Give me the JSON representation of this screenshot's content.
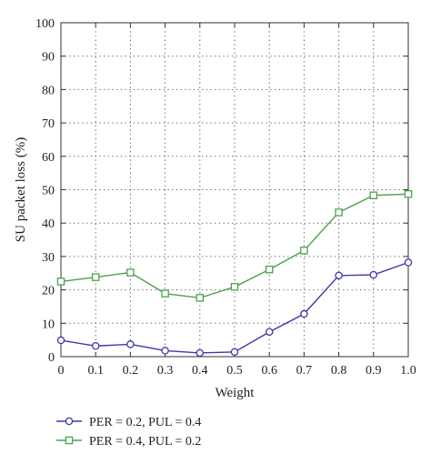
{
  "chart_data": {
    "type": "line",
    "xlabel": "Weight",
    "ylabel": "SU packet loss (%)",
    "xlim": [
      0,
      1.0
    ],
    "ylim": [
      0,
      100
    ],
    "xticks": [
      "0",
      "0.1",
      "0.2",
      "0.3",
      "0.4",
      "0.5",
      "0.6",
      "0.7",
      "0.8",
      "0.9",
      "1.0"
    ],
    "yticks": [
      "0",
      "10",
      "20",
      "30",
      "40",
      "50",
      "60",
      "70",
      "80",
      "90",
      "100"
    ],
    "grid": true,
    "legend_position": "bottom",
    "x": [
      0,
      0.1,
      0.2,
      0.3,
      0.4,
      0.5,
      0.6,
      0.7,
      0.8,
      0.9,
      1.0
    ],
    "series": [
      {
        "name": "PER = 0.2, PUL = 0.4",
        "marker": "circle",
        "color": "#3a3aa8",
        "values": [
          4.9,
          3.2,
          3.7,
          1.8,
          1.1,
          1.4,
          7.4,
          12.8,
          24.3,
          24.5,
          28.2
        ]
      },
      {
        "name": "PER = 0.4, PUL = 0.2",
        "marker": "square",
        "color": "#4ea04e",
        "values": [
          22.5,
          23.8,
          25.2,
          18.9,
          17.6,
          20.9,
          26.1,
          31.8,
          43.2,
          48.3,
          48.7
        ]
      }
    ]
  }
}
